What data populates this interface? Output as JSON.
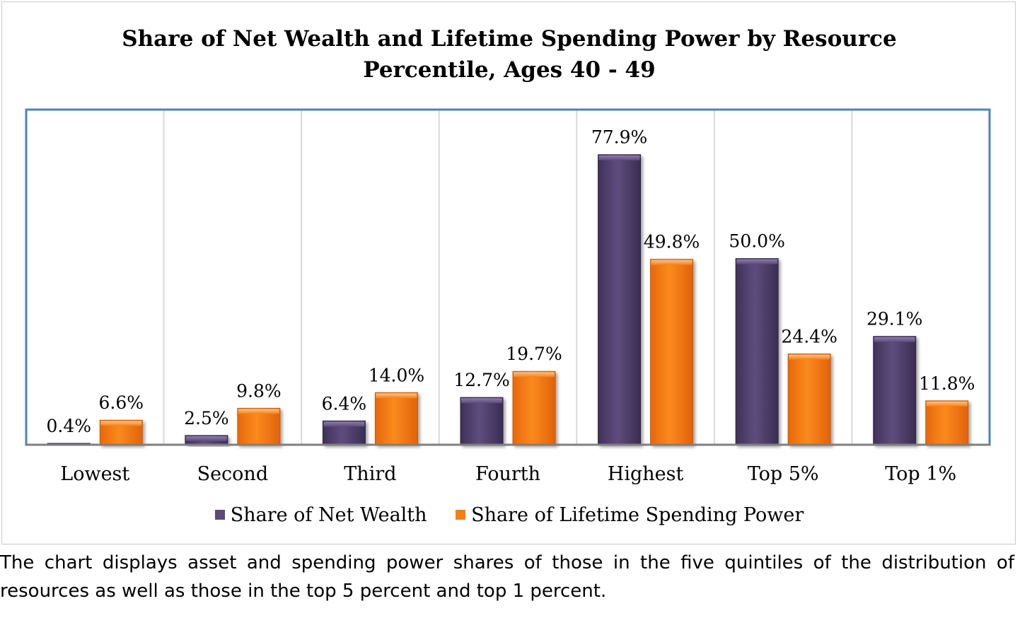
{
  "colors": {
    "net_wealth": "#5b4a7a",
    "spending_power": "#f77f14",
    "plot_border": "#4f81bd",
    "gridline": "#d9d9d9"
  },
  "legend": [
    {
      "label": "Share of Net Wealth",
      "color": "#5b4a7a"
    },
    {
      "label": "Share of Lifetime Spending Power",
      "color": "#f77f14"
    }
  ],
  "caption": "The chart displays asset and spending power shares of those in the five quintiles of the distribution of resources as well as those in the top 5 percent and top 1 percent.",
  "chart_data": {
    "type": "bar",
    "title_lines": [
      "Share of Net Wealth and Lifetime Spending Power by Resource",
      "Percentile, Ages 40 - 49"
    ],
    "categories": [
      "Lowest",
      "Second",
      "Third",
      "Fourth",
      "Highest",
      "Top 5%",
      "Top 1%"
    ],
    "series": [
      {
        "name": "Share of Net Wealth",
        "values": [
          0.4,
          2.5,
          6.4,
          12.7,
          77.9,
          50.0,
          29.1
        ],
        "labels": [
          "0.4%",
          "2.5%",
          "6.4%",
          "12.7%",
          "77.9%",
          "50.0%",
          "29.1%"
        ]
      },
      {
        "name": "Share of Lifetime Spending Power",
        "values": [
          6.6,
          9.8,
          14.0,
          19.7,
          49.8,
          24.4,
          11.8
        ],
        "labels": [
          "6.6%",
          "9.8%",
          "14.0%",
          "19.7%",
          "49.8%",
          "24.4%",
          "11.8%"
        ]
      }
    ],
    "ylim": [
      0,
      90
    ],
    "xlabel": "",
    "ylabel": "",
    "grid": "vertical category separators",
    "legend_position": "bottom"
  }
}
